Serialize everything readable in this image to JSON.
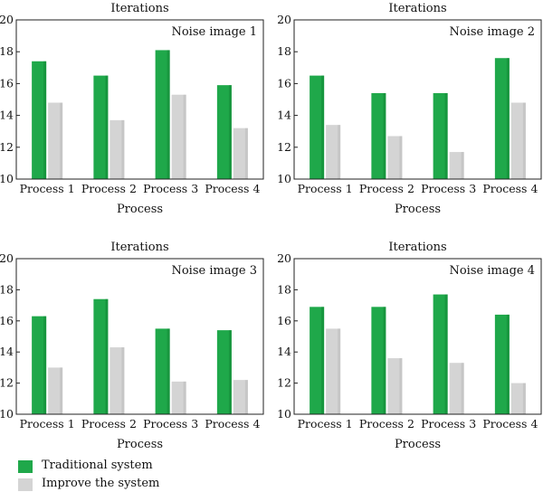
{
  "chart_data": [
    {
      "type": "bar",
      "title": "Iterations",
      "annotation": "Noise image 1",
      "xlabel": "Process",
      "ylabel": "",
      "ylim": [
        10,
        20
      ],
      "yticks": [
        10,
        12,
        14,
        16,
        18,
        20
      ],
      "categories": [
        "Process 1",
        "Process 2",
        "Process 3",
        "Process 4"
      ],
      "series": [
        {
          "name": "Traditional system",
          "values": [
            17.4,
            16.5,
            18.1,
            15.9
          ]
        },
        {
          "name": "Improve the system",
          "values": [
            14.8,
            13.7,
            15.3,
            13.2
          ]
        }
      ]
    },
    {
      "type": "bar",
      "title": "Iterations",
      "annotation": "Noise image 2",
      "xlabel": "Process",
      "ylabel": "",
      "ylim": [
        10,
        20
      ],
      "yticks": [
        10,
        12,
        14,
        16,
        18,
        20
      ],
      "categories": [
        "Process 1",
        "Process 2",
        "Process 3",
        "Process 4"
      ],
      "series": [
        {
          "name": "Traditional system",
          "values": [
            16.5,
            15.4,
            15.4,
            17.6
          ]
        },
        {
          "name": "Improve the system",
          "values": [
            13.4,
            12.7,
            11.7,
            14.8
          ]
        }
      ]
    },
    {
      "type": "bar",
      "title": "Iterations",
      "annotation": "Noise image 3",
      "xlabel": "Process",
      "ylabel": "",
      "ylim": [
        10,
        20
      ],
      "yticks": [
        10,
        12,
        14,
        16,
        18,
        20
      ],
      "categories": [
        "Process 1",
        "Process 2",
        "Process 3",
        "Process 4"
      ],
      "series": [
        {
          "name": "Traditional system",
          "values": [
            16.3,
            17.4,
            15.5,
            15.4
          ]
        },
        {
          "name": "Improve the system",
          "values": [
            13.0,
            14.3,
            12.1,
            12.2
          ]
        }
      ]
    },
    {
      "type": "bar",
      "title": "Iterations",
      "annotation": "Noise image 4",
      "xlabel": "Process",
      "ylabel": "",
      "ylim": [
        10,
        20
      ],
      "yticks": [
        10,
        12,
        14,
        16,
        18,
        20
      ],
      "categories": [
        "Process 1",
        "Process 2",
        "Process 3",
        "Process 4"
      ],
      "series": [
        {
          "name": "Traditional system",
          "values": [
            16.9,
            16.9,
            17.7,
            16.4
          ]
        },
        {
          "name": "Improve the system",
          "values": [
            15.5,
            13.6,
            13.3,
            12.0
          ]
        }
      ]
    }
  ],
  "legend": {
    "items": [
      {
        "label": "Traditional system",
        "color": "#1fa84a"
      },
      {
        "label": "Improve the system",
        "color": "#d4d4d4"
      }
    ]
  },
  "colors": {
    "traditional": "#1fa84a",
    "improve": "#d4d4d4",
    "axis": "#222222"
  }
}
